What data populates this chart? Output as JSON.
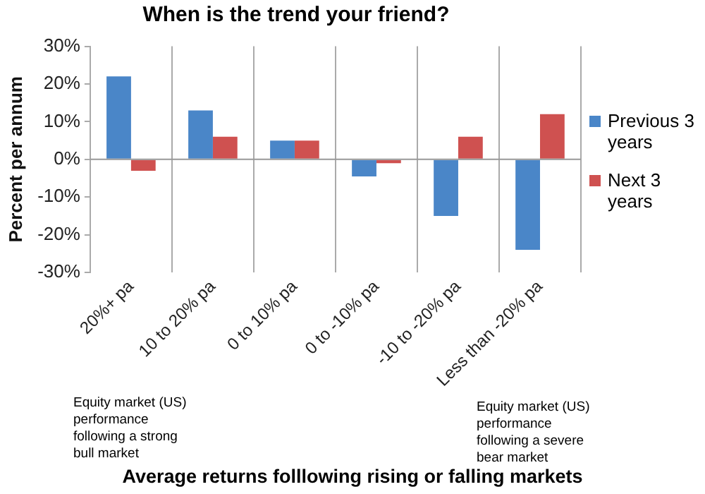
{
  "chart_data": {
    "type": "bar",
    "title": "When is the trend your friend?",
    "xlabel": "Average returns folllowing rising or falling markets",
    "ylabel": "Percent per annum",
    "categories": [
      "20%+ pa",
      "10 to 20% pa",
      "0 to 10% pa",
      "0 to -10% pa",
      "-10 to -20% pa",
      "Less than -20% pa"
    ],
    "series": [
      {
        "name": "Previous 3 years",
        "color": "#4a86c8",
        "values": [
          22,
          13,
          5,
          -4.5,
          -15,
          -24
        ]
      },
      {
        "name": "Next 3 years",
        "color": "#cf5150",
        "values": [
          -3,
          6,
          5,
          -1,
          6,
          12
        ]
      }
    ],
    "ylim": [
      -30,
      30
    ],
    "yticks": [
      {
        "value": -30,
        "label": "-30%"
      },
      {
        "value": -20,
        "label": "-20%"
      },
      {
        "value": -10,
        "label": "-10%"
      },
      {
        "value": 0,
        "label": "0%"
      },
      {
        "value": 10,
        "label": "10%"
      },
      {
        "value": 20,
        "label": "20%"
      },
      {
        "value": 30,
        "label": "30%"
      }
    ],
    "grid": "x",
    "legend": "right",
    "annotations": [
      "Equity market (US) performance following a strong bull market",
      "Equity market (US) performance following a severe bear market"
    ]
  }
}
